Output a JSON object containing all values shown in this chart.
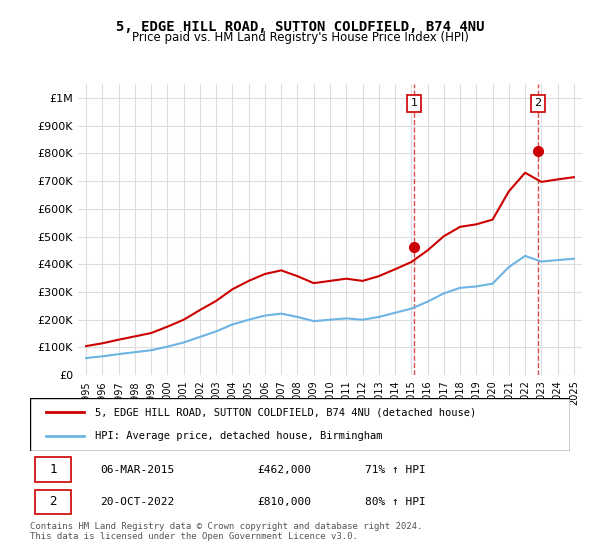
{
  "title": "5, EDGE HILL ROAD, SUTTON COLDFIELD, B74 4NU",
  "subtitle": "Price paid vs. HM Land Registry's House Price Index (HPI)",
  "xlabel": "",
  "ylabel": "",
  "ylim": [
    0,
    1050000
  ],
  "yticks": [
    0,
    100000,
    200000,
    300000,
    400000,
    500000,
    600000,
    700000,
    800000,
    900000,
    1000000
  ],
  "ytick_labels": [
    "£0",
    "£100K",
    "£200K",
    "£300K",
    "£400K",
    "£500K",
    "£600K",
    "£700K",
    "£800K",
    "£900K",
    "£1M"
  ],
  "hpi_color": "#6cb4e4",
  "price_color": "#cc0000",
  "marker_color_1": "#cc0000",
  "marker_color_2": "#cc0000",
  "vline_color": "#cc0000",
  "grid_color": "#dddddd",
  "bg_color": "#ffffff",
  "legend_box_color": "#000000",
  "transaction_1_date": 2015.17,
  "transaction_1_price": 462000,
  "transaction_1_label": "1",
  "transaction_2_date": 2022.8,
  "transaction_2_price": 810000,
  "transaction_2_label": "2",
  "legend_line1": "5, EDGE HILL ROAD, SUTTON COLDFIELD, B74 4NU (detached house)",
  "legend_line2": "HPI: Average price, detached house, Birmingham",
  "table_row1_num": "1",
  "table_row1_date": "06-MAR-2015",
  "table_row1_price": "£462,000",
  "table_row1_hpi": "71% ↑ HPI",
  "table_row2_num": "2",
  "table_row2_date": "20-OCT-2022",
  "table_row2_price": "£810,000",
  "table_row2_hpi": "80% ↑ HPI",
  "footnote": "Contains HM Land Registry data © Crown copyright and database right 2024.\nThis data is licensed under the Open Government Licence v3.0.",
  "hpi_years": [
    1995,
    1996,
    1997,
    1998,
    1999,
    2000,
    2001,
    2002,
    2003,
    2004,
    2005,
    2006,
    2007,
    2008,
    2009,
    2010,
    2011,
    2012,
    2013,
    2014,
    2015,
    2016,
    2017,
    2018,
    2019,
    2020,
    2021,
    2022,
    2023,
    2024,
    2025
  ],
  "hpi_values": [
    62000,
    68000,
    76000,
    83000,
    90000,
    103000,
    118000,
    138000,
    158000,
    183000,
    200000,
    215000,
    222000,
    210000,
    195000,
    200000,
    205000,
    200000,
    210000,
    225000,
    240000,
    265000,
    295000,
    315000,
    320000,
    330000,
    390000,
    430000,
    410000,
    415000,
    420000
  ],
  "price_years": [
    1995,
    1996,
    1997,
    1998,
    1999,
    2000,
    2001,
    2002,
    2003,
    2004,
    2005,
    2006,
    2007,
    2008,
    2009,
    2010,
    2011,
    2012,
    2013,
    2014,
    2015,
    2016,
    2017,
    2018,
    2019,
    2020,
    2021,
    2022,
    2023,
    2024,
    2025
  ],
  "price_values": [
    105000,
    115000,
    128000,
    140000,
    152000,
    175000,
    200000,
    235000,
    268000,
    310000,
    340000,
    365000,
    378000,
    357000,
    332000,
    340000,
    348000,
    340000,
    357000,
    382000,
    408000,
    450000,
    501000,
    535000,
    544000,
    561000,
    663000,
    730000,
    697000,
    706000,
    714000
  ]
}
